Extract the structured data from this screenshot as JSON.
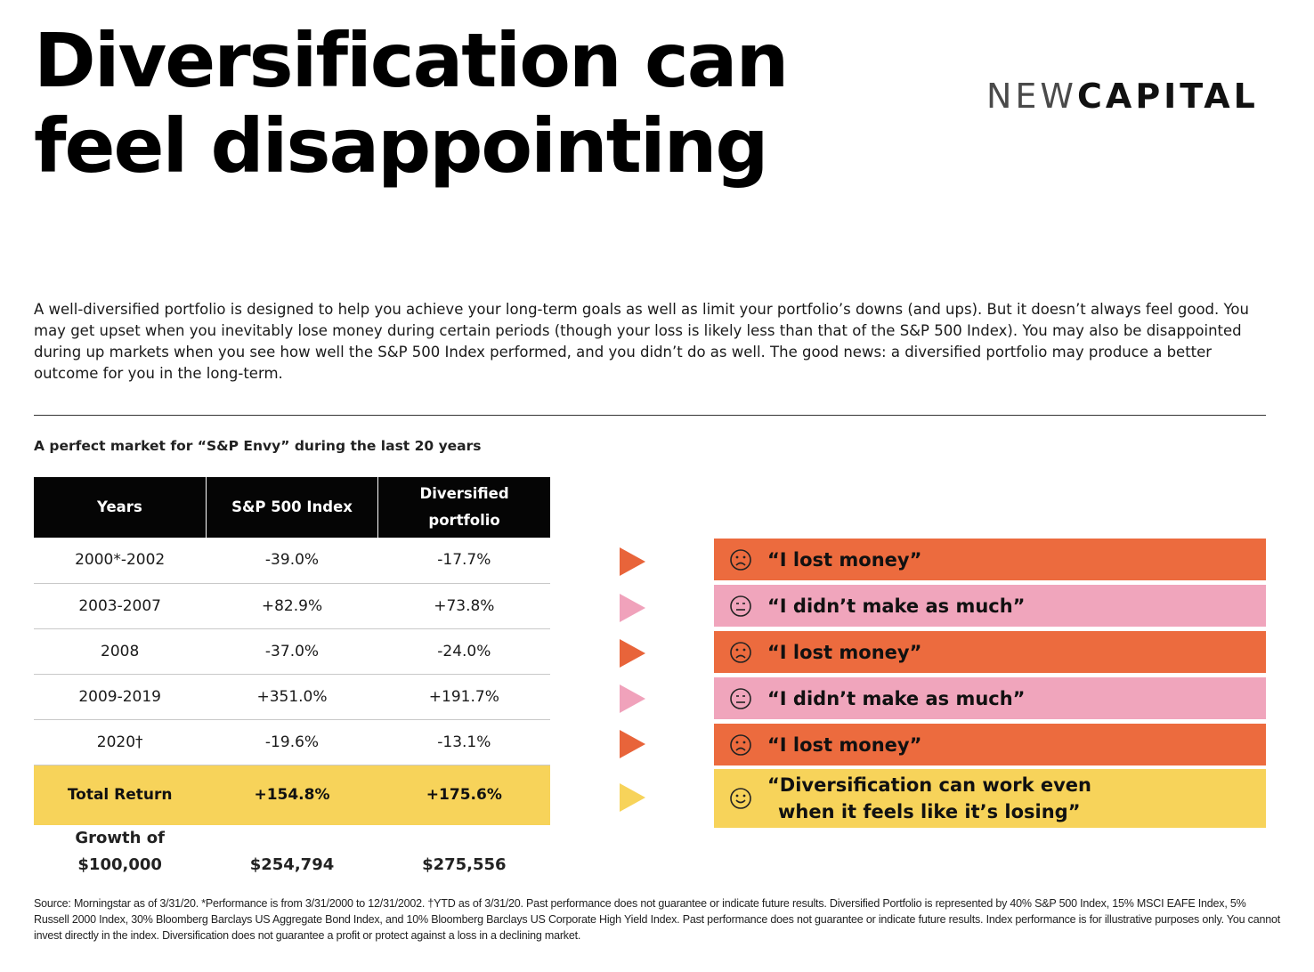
{
  "title": {
    "line1": "Diversification can",
    "line2": "feel disappointing"
  },
  "logo": {
    "part1": "NEW",
    "part2": "CAPITAL"
  },
  "intro": "A well-diversified portfolio is designed to help you achieve your long-term goals as well as limit your portfolio’s downs (and ups). But it doesn’t always feel good. You may get upset when you inevitably lose money during certain periods (though your loss is likely less than that of the S&P 500 Index). You may also be disappointed during up markets when you see how well the S&P 500 Index performed, and you didn’t do as well. The good news: a diversified portfolio may produce a better outcome for you in the long-term.",
  "subtitle": "A perfect market for “S&P Envy” during the last 20 years",
  "table": {
    "headers": [
      "Years",
      "S&P 500 Index",
      "Diversified portfolio"
    ],
    "rows": [
      {
        "years": "2000*-2002",
        "sp": "-39.0%",
        "div": "-17.7%"
      },
      {
        "years": "2003-2007",
        "sp": "+82.9%",
        "div": "+73.8%"
      },
      {
        "years": "2008",
        "sp": "-37.0%",
        "div": "-24.0%"
      },
      {
        "years": "2009-2019",
        "sp": "+351.0%",
        "div": "+191.7%"
      },
      {
        "years": "2020†",
        "sp": "-19.6%",
        "div": "-13.1%"
      }
    ],
    "total": {
      "label": "Total Return",
      "sp": "+154.8%",
      "div": "+175.6%"
    },
    "growth": {
      "label_line1": "Growth of",
      "label_line2": "$100,000",
      "sp": "$254,794",
      "div": "$275,556"
    }
  },
  "feelings": [
    {
      "text": "“I lost money”",
      "color": "#ec6b3e",
      "face": "frown-icon"
    },
    {
      "text": "“I didn’t make as much”",
      "color": "#f0a5bc",
      "face": "neutral-face-icon"
    },
    {
      "text": "“I lost money”",
      "color": "#ec6b3e",
      "face": "frown-icon"
    },
    {
      "text": "“I didn’t make as much”",
      "color": "#f0a5bc",
      "face": "neutral-face-icon"
    },
    {
      "text": "“I lost money”",
      "color": "#ec6b3e",
      "face": "frown-icon"
    },
    {
      "text_line1": "“Diversification can work even",
      "text_line2": "when it feels like it’s losing”",
      "color": "#f7d35a",
      "face": "smile-icon"
    }
  ],
  "footnote": "Source: Morningstar as of 3/31/20. *Performance is from 3/31/2000 to 12/31/2002. †YTD as of 3/31/20. Past performance does not guarantee or indicate future results. Diversified Portfolio is represented by 40% S&P 500 Index, 15% MSCI EAFE Index, 5% Russell 2000 Index, 30% Bloomberg Barclays US Aggregate Bond Index, and 10% Bloomberg Barclays US Corporate High Yield Index. Past performance does not guarantee or indicate future results. Index performance is for illustrative purposes only. You cannot invest directly in the index. Diversification does not guarantee a profit or protect against a loss in a declining market."
}
